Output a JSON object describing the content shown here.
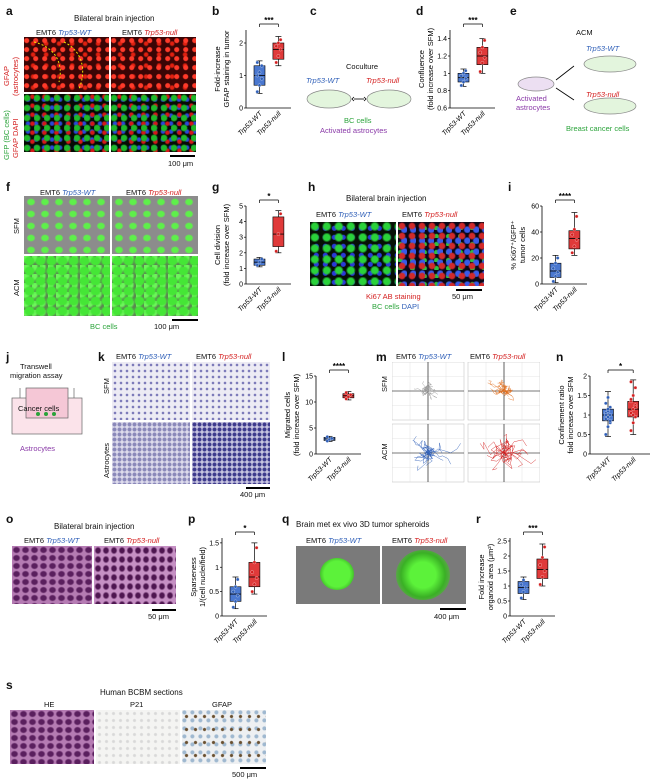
{
  "labels": {
    "wt": "Trp53-WT",
    "null": "Trp53-null",
    "emt6": "EMT6"
  },
  "panels": {
    "a": {
      "letter": "a",
      "title": "Bilateral brain injection",
      "row1": "GFAP",
      "row1b": "(astrocytes)",
      "row2": "GFP (BC cells)",
      "row2b": "GFAP DAPI",
      "scale": "100 μm"
    },
    "b": {
      "letter": "b",
      "ylabel": "Fold-increase",
      "ylabel2": "GFAP staining in tumor",
      "sig": "***"
    },
    "c": {
      "letter": "c",
      "title": "Coculture",
      "bc": "BC cells",
      "astro": "Activated astrocytes"
    },
    "d": {
      "letter": "d",
      "ylabel": "Confluence",
      "ylabel2": "(fold increase over SFM)",
      "sig": "***"
    },
    "e": {
      "letter": "e",
      "title": "ACM",
      "astro1": "Activated",
      "astro2": "astrocytes",
      "bc": "Breast cancer cells"
    },
    "f": {
      "letter": "f",
      "row1": "SFM",
      "row2": "ACM",
      "bc": "BC cells",
      "scale": "100 μm"
    },
    "g": {
      "letter": "g",
      "ylabel": "Cell division",
      "ylabel2": "(fold increase over SFM)",
      "sig": "*"
    },
    "h": {
      "letter": "h",
      "title": "Bilateral brain injection",
      "stain1": "Ki67 AB staining",
      "stain2": "BC cells",
      "stain3": "DAPI",
      "scale": "50 μm"
    },
    "i": {
      "letter": "i",
      "ylabel": "% Ki67⁺/GFP⁺",
      "ylabel2": "tumor cells",
      "sig": "****"
    },
    "j": {
      "letter": "j",
      "title1": "Transwell",
      "title2": "migration assay",
      "cancer": "Cancer cells",
      "astro": "Astrocytes"
    },
    "k": {
      "letter": "k",
      "row1": "SFM",
      "row2": "Astrocytes",
      "scale": "400 μm"
    },
    "l": {
      "letter": "l",
      "ylabel": "Migrated cells",
      "ylabel2": "(fold increase over SFM)",
      "sig": "****"
    },
    "m": {
      "letter": "m",
      "row1": "SFM",
      "row2": "ACM"
    },
    "n": {
      "letter": "n",
      "ylabel": "Confinement ratio",
      "ylabel2": "fold increase over SFM",
      "sig": "*"
    },
    "o": {
      "letter": "o",
      "title": "Bilateral brain injection",
      "scale": "50 μm"
    },
    "p": {
      "letter": "p",
      "ylabel": "Sparseness",
      "ylabel2": "1/(cell nuclei/field)",
      "sig": "*"
    },
    "q": {
      "letter": "q",
      "title": "Brain met ex vivo 3D tumor spheroids",
      "scale": "400 μm"
    },
    "r": {
      "letter": "r",
      "ylabel": "Fold increase",
      "ylabel2": "organoid area (μm²)",
      "sig": "***"
    },
    "s": {
      "letter": "s",
      "title": "Human BCBM sections",
      "c1": "HE",
      "c2": "P21",
      "c3": "GFAP",
      "scale": "500 μm"
    }
  },
  "colors": {
    "wt": "#2f5fb8",
    "null": "#d42020"
  },
  "chart_data": [
    {
      "id": "b",
      "type": "box",
      "categories": [
        "Trp53-WT",
        "Trp53-null"
      ],
      "ylim": [
        0,
        2.4
      ],
      "ticks": [
        0,
        1,
        2
      ],
      "series": [
        {
          "q1": 0.7,
          "med": 1.0,
          "q3": 1.3,
          "min": 0.45,
          "max": 1.45,
          "points": [
            0.5,
            0.7,
            0.9,
            1.0,
            1.1,
            1.3,
            1.4
          ]
        },
        {
          "q1": 1.5,
          "med": 1.8,
          "q3": 2.0,
          "min": 1.3,
          "max": 2.2,
          "points": [
            1.4,
            1.6,
            1.8,
            1.9,
            2.0,
            2.1
          ]
        }
      ]
    },
    {
      "id": "d",
      "type": "box",
      "categories": [
        "Trp53-WT",
        "Trp53-null"
      ],
      "ylim": [
        0.6,
        1.5
      ],
      "ticks": [
        0.6,
        0.8,
        1.0,
        1.2,
        1.4
      ],
      "series": [
        {
          "q1": 0.9,
          "med": 0.95,
          "q3": 1.0,
          "min": 0.85,
          "max": 1.05,
          "points": [
            0.86,
            0.9,
            0.94,
            0.97,
            1.0,
            1.03
          ]
        },
        {
          "q1": 1.1,
          "med": 1.2,
          "q3": 1.3,
          "min": 1.0,
          "max": 1.4,
          "points": [
            1.02,
            1.12,
            1.18,
            1.24,
            1.3,
            1.38
          ]
        }
      ]
    },
    {
      "id": "g",
      "type": "box",
      "categories": [
        "Trp53-WT",
        "Trp53-null"
      ],
      "ylim": [
        0,
        5
      ],
      "ticks": [
        0,
        1,
        2,
        3,
        4,
        5
      ],
      "series": [
        {
          "q1": 1.2,
          "med": 1.4,
          "q3": 1.6,
          "min": 1.1,
          "max": 1.7,
          "points": [
            1.2,
            1.4,
            1.6
          ]
        },
        {
          "q1": 2.4,
          "med": 3.2,
          "q3": 4.3,
          "min": 2.0,
          "max": 4.7,
          "points": [
            2.1,
            3.2,
            4.5
          ]
        }
      ]
    },
    {
      "id": "i",
      "type": "box",
      "categories": [
        "Trp53-WT",
        "Trp53-null"
      ],
      "ylim": [
        0,
        60
      ],
      "ticks": [
        0,
        20,
        40,
        60
      ],
      "series": [
        {
          "q1": 5,
          "med": 10,
          "q3": 16,
          "min": 1,
          "max": 22,
          "points": [
            2,
            6,
            9,
            12,
            16,
            20
          ]
        },
        {
          "q1": 27,
          "med": 35,
          "q3": 41,
          "min": 22,
          "max": 55,
          "points": [
            24,
            29,
            34,
            38,
            42,
            52
          ]
        }
      ]
    },
    {
      "id": "l",
      "type": "box",
      "categories": [
        "Trp53-WT",
        "Trp53-null"
      ],
      "ylim": [
        0,
        15
      ],
      "ticks": [
        0,
        5,
        10,
        15
      ],
      "series": [
        {
          "q1": 2.6,
          "med": 2.9,
          "q3": 3.2,
          "min": 2.4,
          "max": 3.4,
          "points": [
            2.5,
            2.8,
            3.0,
            3.3
          ]
        },
        {
          "q1": 10.8,
          "med": 11.2,
          "q3": 11.6,
          "min": 10.4,
          "max": 12.0,
          "points": [
            10.6,
            11.0,
            11.4,
            11.8
          ]
        }
      ]
    },
    {
      "id": "n",
      "type": "box",
      "categories": [
        "Trp53-WT",
        "Trp53-null"
      ],
      "ylim": [
        0,
        2.0
      ],
      "ticks": [
        0,
        0.5,
        1.0,
        1.5,
        2.0
      ],
      "series": [
        {
          "q1": 0.85,
          "med": 1.0,
          "q3": 1.15,
          "min": 0.45,
          "max": 1.6,
          "points": [
            0.5,
            0.7,
            0.8,
            0.9,
            0.95,
            1.0,
            1.05,
            1.1,
            1.2,
            1.3,
            1.45,
            0.85,
            1.0,
            1.15
          ]
        },
        {
          "q1": 0.95,
          "med": 1.15,
          "q3": 1.35,
          "min": 0.5,
          "max": 1.9,
          "points": [
            0.6,
            0.8,
            0.95,
            1.05,
            1.15,
            1.25,
            1.35,
            1.5,
            1.7,
            1.85,
            1.0,
            1.2,
            1.4
          ]
        }
      ]
    },
    {
      "id": "p",
      "type": "box",
      "categories": [
        "Trp53-WT",
        "Trp53-null"
      ],
      "ylim": [
        0,
        1.6
      ],
      "ticks": [
        0,
        0.5,
        1.0,
        1.5
      ],
      "series": [
        {
          "q1": 0.3,
          "med": 0.45,
          "q3": 0.6,
          "min": 0.15,
          "max": 0.8,
          "points": [
            0.18,
            0.3,
            0.42,
            0.5,
            0.6,
            0.75
          ]
        },
        {
          "q1": 0.6,
          "med": 0.8,
          "q3": 1.1,
          "min": 0.45,
          "max": 1.5,
          "points": [
            0.5,
            0.65,
            0.78,
            0.9,
            1.1,
            1.4
          ]
        }
      ]
    },
    {
      "id": "r",
      "type": "box",
      "categories": [
        "Trp53-WT",
        "Trp53-null"
      ],
      "ylim": [
        0,
        2.6
      ],
      "ticks": [
        0,
        0.5,
        1.0,
        1.5,
        2.0,
        2.5
      ],
      "series": [
        {
          "q1": 0.75,
          "med": 0.95,
          "q3": 1.15,
          "min": 0.55,
          "max": 1.3,
          "points": [
            0.6,
            0.8,
            0.95,
            1.05,
            1.2
          ]
        },
        {
          "q1": 1.25,
          "med": 1.55,
          "q3": 1.9,
          "min": 1.0,
          "max": 2.4,
          "points": [
            1.05,
            1.3,
            1.5,
            1.7,
            1.95,
            2.3
          ]
        }
      ]
    }
  ]
}
